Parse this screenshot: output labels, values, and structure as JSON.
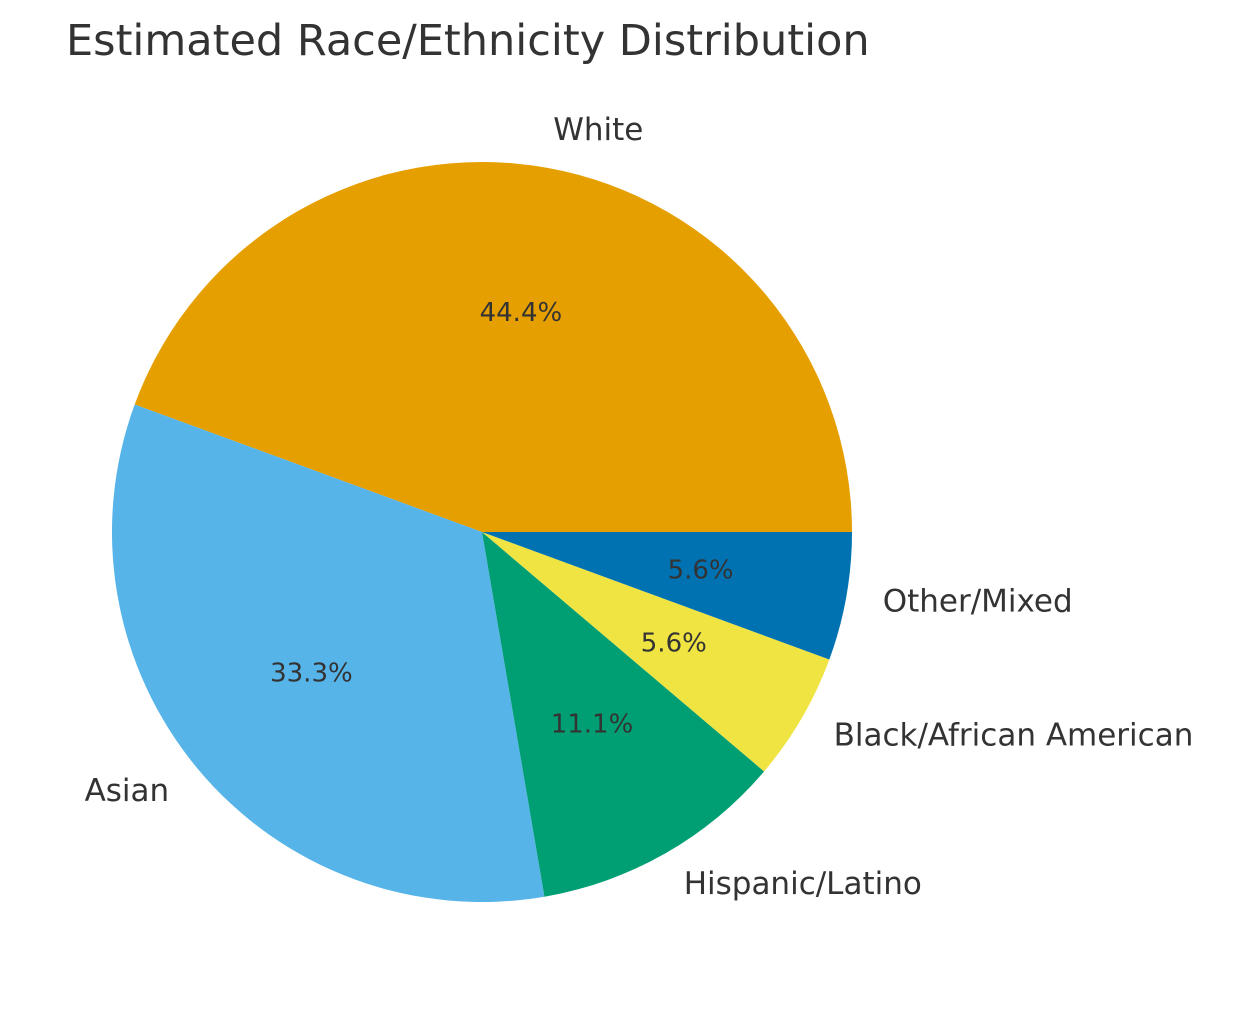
{
  "chart_data": {
    "type": "pie",
    "title": "Estimated Race/Ethnicity Distribution",
    "slices": [
      {
        "label": "White",
        "percent": "44.4%",
        "value": 44.4,
        "color": "#E69F00"
      },
      {
        "label": "Asian",
        "percent": "33.3%",
        "value": 33.3,
        "color": "#56B4E9"
      },
      {
        "label": "Hispanic/Latino",
        "percent": "11.1%",
        "value": 11.1,
        "color": "#009E73"
      },
      {
        "label": "Black/African American",
        "percent": "5.6%",
        "value": 5.6,
        "color": "#F0E442"
      },
      {
        "label": "Other/Mixed",
        "percent": "5.6%",
        "value": 5.6,
        "color": "#0072B2"
      }
    ],
    "start_angle_deg": 0,
    "direction": "counterclockwise",
    "legend": "none"
  }
}
